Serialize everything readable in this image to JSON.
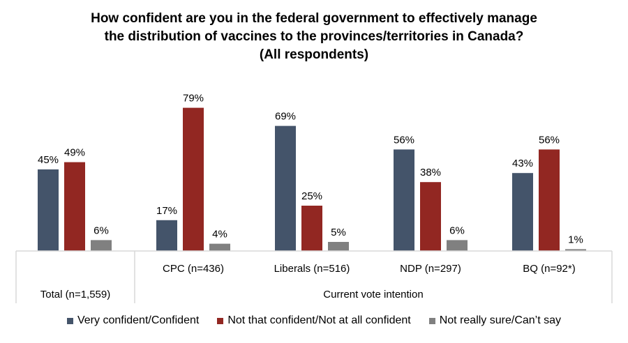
{
  "chart_data": {
    "type": "bar",
    "title": [
      "How confident are you in the federal government to effectively manage",
      "the distribution of vaccines to the provinces/territories in Canada?",
      "(All respondents)"
    ],
    "categories": [
      "Total (n=1,559)",
      "CPC (n=436)",
      "Liberals (n=516)",
      "NDP (n=297)",
      "BQ (n=92*)"
    ],
    "group_label": "Current vote intention",
    "series": [
      {
        "name": "Very confident/Confident",
        "color": "#44546A",
        "values": [
          45,
          17,
          69,
          56,
          43
        ]
      },
      {
        "name": "Not that confident/Not at all confident",
        "color": "#922722",
        "values": [
          49,
          79,
          25,
          38,
          56
        ]
      },
      {
        "name": "Not really sure/Can’t say",
        "color": "#808080",
        "values": [
          6,
          4,
          5,
          6,
          1
        ]
      }
    ],
    "value_suffix": "%",
    "ylim": [
      0,
      100
    ],
    "grid": false,
    "legend_position": "bottom",
    "xlabel": "",
    "ylabel": ""
  }
}
